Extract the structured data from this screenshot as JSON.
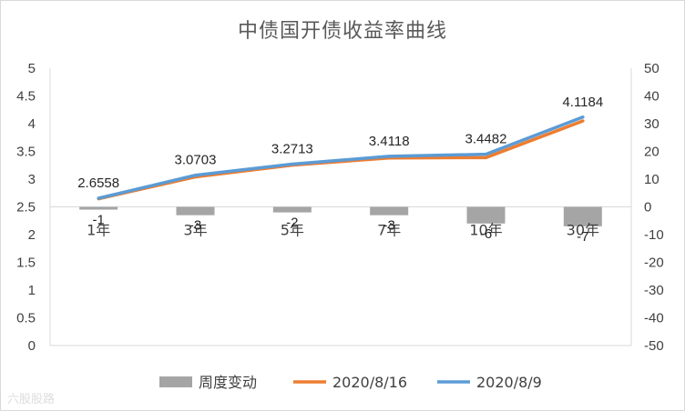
{
  "title": "中债国开债收益率曲线",
  "watermark": "六股股路",
  "colors": {
    "bar": "#a5a5a5",
    "line_0816": "#ed7d31",
    "line_0809": "#5b9bd5",
    "axis": "#d9d9d9",
    "text": "#404040"
  },
  "chart_data": {
    "type": "bar+line",
    "title": "中债国开债收益率曲线",
    "categories": [
      "1年",
      "3年",
      "5年",
      "7年",
      "10年",
      "30年"
    ],
    "left_axis": {
      "min": 0,
      "max": 5,
      "step": 0.5,
      "ticks": [
        "0",
        "0.5",
        "1",
        "1.5",
        "2",
        "2.5",
        "3",
        "3.5",
        "4",
        "4.5",
        "5"
      ]
    },
    "right_axis": {
      "min": -50,
      "max": 50,
      "step": 10,
      "ticks": [
        "-50",
        "-40",
        "-30",
        "-20",
        "-10",
        "0",
        "10",
        "20",
        "30",
        "40",
        "50"
      ]
    },
    "series": [
      {
        "name": "周度变动",
        "type": "bar",
        "axis": "right",
        "values": [
          -1,
          -3,
          -2,
          -3,
          -6,
          -7
        ],
        "labels": [
          "-1",
          "-3",
          "-2",
          "-3",
          "-6",
          "-7"
        ]
      },
      {
        "name": "2020/8/16",
        "type": "line",
        "axis": "left",
        "values": [
          2.6458,
          3.0403,
          3.2513,
          3.3818,
          3.3882,
          4.0484
        ]
      },
      {
        "name": "2020/8/9",
        "type": "line",
        "axis": "left",
        "values": [
          2.6558,
          3.0703,
          3.2713,
          3.4118,
          3.4482,
          4.1184
        ],
        "labels": [
          "2.6558",
          "3.0703",
          "3.2713",
          "3.4118",
          "3.4482",
          "4.1184"
        ]
      }
    ],
    "grid": false,
    "legend_position": "bottom"
  }
}
